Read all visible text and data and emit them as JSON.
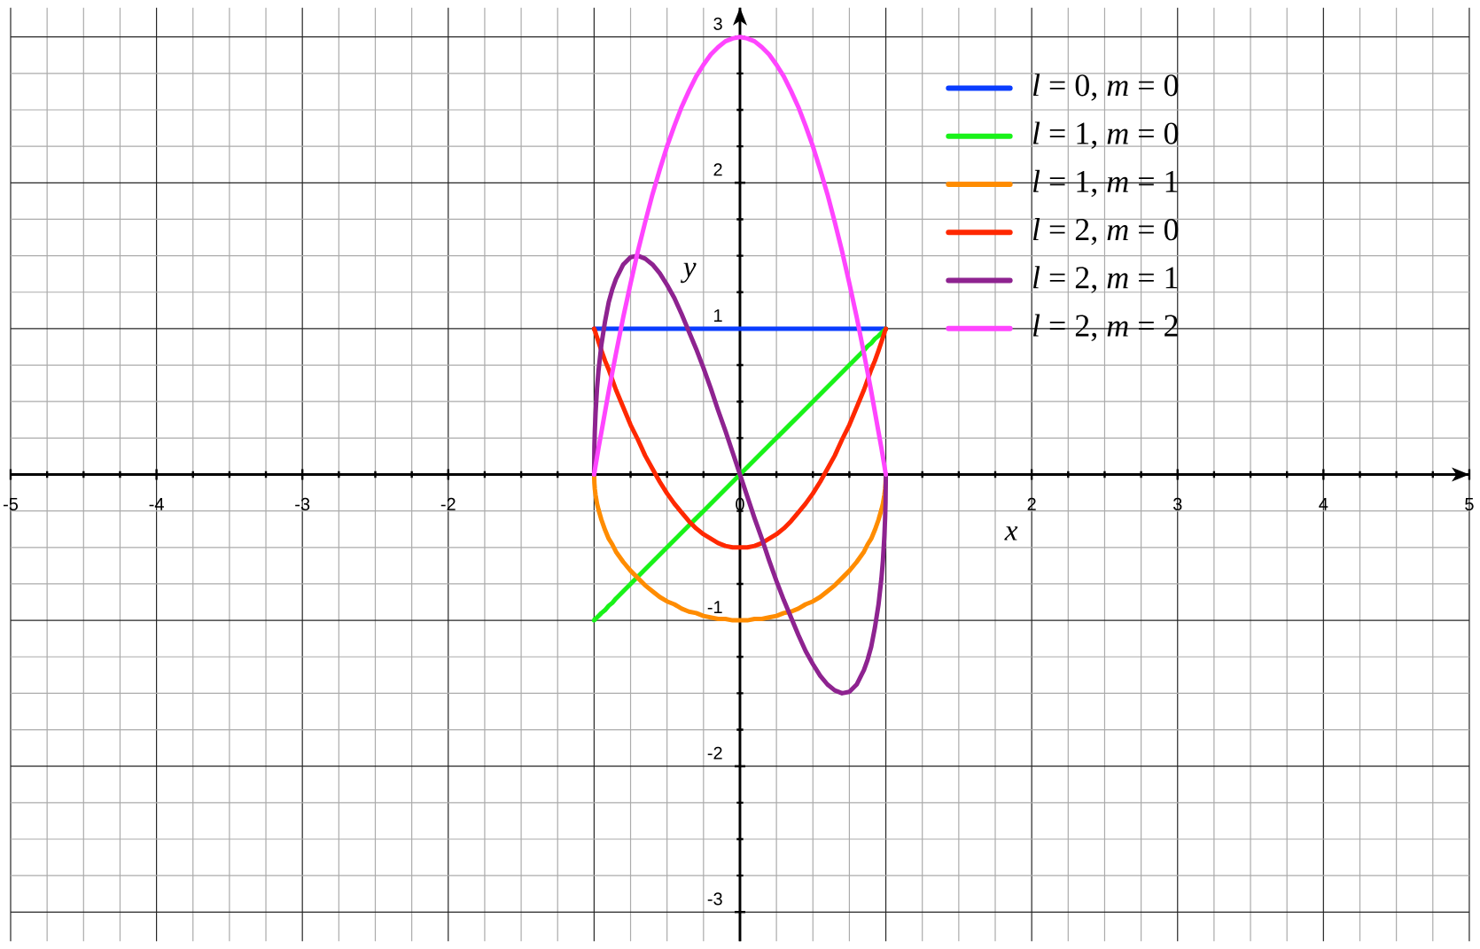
{
  "chart_data": {
    "type": "line",
    "xlabel": "x",
    "ylabel": "y",
    "x": [
      -1,
      -0.998,
      -0.995,
      -0.99,
      -0.98,
      -0.97,
      -0.95,
      -0.925,
      -0.9,
      -0.875,
      -0.85,
      -0.8,
      -0.75,
      -0.7,
      -0.65,
      -0.6,
      -0.55,
      -0.5,
      -0.45,
      -0.4,
      -0.35,
      -0.3,
      -0.25,
      -0.2,
      -0.15,
      -0.1,
      -0.05,
      0,
      0.05,
      0.1,
      0.15,
      0.2,
      0.25,
      0.3,
      0.35,
      0.4,
      0.45,
      0.5,
      0.55,
      0.6,
      0.65,
      0.7,
      0.75,
      0.8,
      0.85,
      0.875,
      0.9,
      0.925,
      0.95,
      0.97,
      0.98,
      0.99,
      0.995,
      0.998,
      1
    ],
    "xlim": [
      -5,
      5
    ],
    "ylim": [
      -3.2,
      3.2
    ],
    "xticks": [
      -5,
      -4,
      -3,
      -2,
      {
        "value": -1,
        "label": null
      },
      0,
      {
        "value": 1,
        "label": null
      },
      2,
      3,
      4,
      5
    ],
    "yticks": [
      -3,
      -2,
      -1,
      1,
      2,
      3
    ],
    "grid": true,
    "legend": "top right",
    "series": [
      {
        "name": "*l* = 0, *m* = 0",
        "color": "#0a3dff",
        "values": [
          1,
          1,
          1,
          1,
          1,
          1,
          1,
          1,
          1,
          1,
          1,
          1,
          1,
          1,
          1,
          1,
          1,
          1,
          1,
          1,
          1,
          1,
          1,
          1,
          1,
          1,
          1,
          1,
          1,
          1,
          1,
          1,
          1,
          1,
          1,
          1,
          1,
          1,
          1,
          1,
          1,
          1,
          1,
          1,
          1,
          1,
          1,
          1,
          1,
          1,
          1,
          1,
          1,
          1,
          1
        ]
      },
      {
        "name": "*l* = 1, *m* = 0",
        "color": "#19f219",
        "values": [
          -1,
          -1,
          -0.99,
          -0.99,
          -0.98,
          -0.97,
          -0.95,
          -0.93,
          -0.9,
          -0.88,
          -0.85,
          -0.8,
          -0.75,
          -0.7,
          -0.65,
          -0.6,
          -0.55,
          -0.5,
          -0.45,
          -0.4,
          -0.35,
          -0.3,
          -0.25,
          -0.2,
          -0.15,
          -0.1,
          -0.05,
          0,
          0.05,
          0.1,
          0.15,
          0.2,
          0.25,
          0.3,
          0.35,
          0.4,
          0.45,
          0.5,
          0.55,
          0.6,
          0.65,
          0.7,
          0.75,
          0.8,
          0.85,
          0.88,
          0.9,
          0.93,
          0.95,
          0.97,
          0.98,
          0.99,
          0.99,
          1,
          1
        ]
      },
      {
        "name": "*l* = 1, *m* = 1",
        "color": "#ff8c00",
        "values": [
          0,
          -0.06,
          -0.1,
          -0.14,
          -0.2,
          -0.24,
          -0.31,
          -0.38,
          -0.44,
          -0.48,
          -0.53,
          -0.6,
          -0.66,
          -0.71,
          -0.76,
          -0.8,
          -0.84,
          -0.87,
          -0.89,
          -0.92,
          -0.94,
          -0.95,
          -0.97,
          -0.98,
          -0.99,
          -0.99,
          -1,
          -1,
          -1,
          -0.99,
          -0.99,
          -0.98,
          -0.97,
          -0.95,
          -0.94,
          -0.92,
          -0.89,
          -0.87,
          -0.84,
          -0.8,
          -0.76,
          -0.71,
          -0.66,
          -0.6,
          -0.53,
          -0.48,
          -0.44,
          -0.38,
          -0.31,
          -0.24,
          -0.2,
          -0.14,
          -0.1,
          -0.06,
          0
        ]
      },
      {
        "name": "*l* = 2, *m* = 0",
        "color": "#ff2800",
        "values": [
          1,
          0.99,
          0.99,
          0.97,
          0.94,
          0.91,
          0.85,
          0.78,
          0.72,
          0.65,
          0.58,
          0.46,
          0.34,
          0.24,
          0.13,
          0.04,
          -0.05,
          -0.13,
          -0.2,
          -0.26,
          -0.32,
          -0.37,
          -0.41,
          -0.44,
          -0.47,
          -0.49,
          -0.5,
          -0.5,
          -0.5,
          -0.49,
          -0.47,
          -0.44,
          -0.41,
          -0.37,
          -0.32,
          -0.26,
          -0.2,
          -0.13,
          -0.05,
          0.04,
          0.13,
          0.24,
          0.34,
          0.46,
          0.58,
          0.65,
          0.72,
          0.78,
          0.85,
          0.91,
          0.94,
          0.97,
          0.99,
          0.99,
          1
        ]
      },
      {
        "name": "*l* = 2, *m* = 1",
        "color": "#8e2390",
        "values": [
          0,
          0.19,
          0.3,
          0.42,
          0.59,
          0.71,
          0.89,
          1.05,
          1.18,
          1.27,
          1.34,
          1.44,
          1.49,
          1.5,
          1.48,
          1.44,
          1.38,
          1.3,
          1.21,
          1.1,
          0.98,
          0.86,
          0.73,
          0.59,
          0.44,
          0.3,
          0.15,
          0,
          -0.15,
          -0.3,
          -0.44,
          -0.59,
          -0.73,
          -0.86,
          -0.98,
          -1.1,
          -1.21,
          -1.3,
          -1.38,
          -1.44,
          -1.48,
          -1.5,
          -1.49,
          -1.44,
          -1.34,
          -1.27,
          -1.18,
          -1.05,
          -0.89,
          -0.71,
          -0.59,
          -0.42,
          -0.3,
          -0.19,
          0
        ]
      },
      {
        "name": "*l* = 2, *m* = 2",
        "color": "#ff45ff",
        "values": [
          0,
          0.01,
          0.03,
          0.06,
          0.12,
          0.18,
          0.29,
          0.43,
          0.57,
          0.7,
          0.83,
          1.08,
          1.31,
          1.53,
          1.73,
          1.92,
          2.09,
          2.25,
          2.39,
          2.52,
          2.63,
          2.73,
          2.81,
          2.88,
          2.93,
          2.97,
          2.99,
          3,
          2.99,
          2.97,
          2.93,
          2.88,
          2.81,
          2.73,
          2.63,
          2.52,
          2.39,
          2.25,
          2.09,
          1.92,
          1.73,
          1.53,
          1.31,
          1.08,
          0.83,
          0.7,
          0.57,
          0.43,
          0.29,
          0.18,
          0.12,
          0.06,
          0.03,
          0.01,
          0
        ]
      }
    ]
  }
}
